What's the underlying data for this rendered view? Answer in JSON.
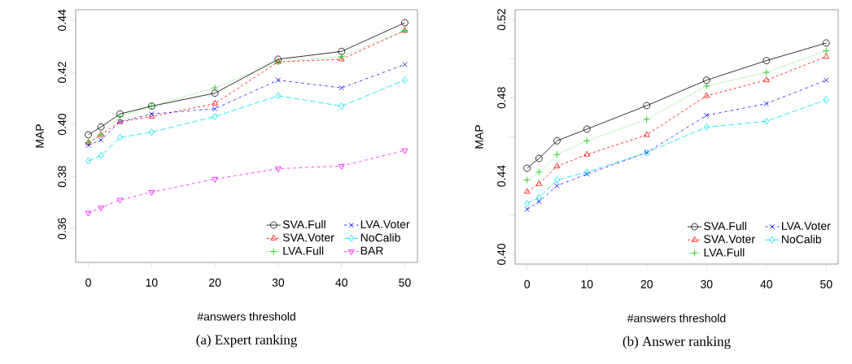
{
  "chart_data": [
    {
      "type": "line",
      "title": "(a) Expert ranking",
      "xlabel": "#answers threshold",
      "ylabel": "MAP",
      "x": [
        0,
        2,
        5,
        10,
        20,
        30,
        40,
        50
      ],
      "xlim": [
        -2,
        52
      ],
      "xticks": [
        0,
        10,
        20,
        30,
        40,
        50
      ],
      "ylim": [
        0.347,
        0.444
      ],
      "yticks": [
        0.36,
        0.38,
        {
          "value": 0.4,
          "label": "0.40"
        },
        0.42,
        0.44
      ],
      "legend": "bottom right",
      "grid": false,
      "series": [
        {
          "name": "SVA.Full",
          "color": "#000000",
          "marker": "circle",
          "line_style": "solid",
          "values": [
            0.396,
            0.399,
            0.404,
            0.407,
            0.412,
            0.425,
            0.428,
            0.439
          ]
        },
        {
          "name": "SVA.Voter",
          "color": "#ff0000",
          "marker": "triangle",
          "line_style": "dashed",
          "values": [
            0.393,
            0.396,
            0.401,
            0.403,
            0.408,
            0.424,
            0.425,
            0.436
          ]
        },
        {
          "name": "LVA.Full",
          "color": "#00cd00",
          "marker": "plus",
          "line_style": "dotted",
          "values": [
            0.393,
            0.396,
            0.403,
            0.407,
            0.414,
            0.424,
            0.426,
            0.436
          ]
        },
        {
          "name": "LVA.Voter",
          "color": "#0000ff",
          "marker": "x",
          "line_style": "dashdot",
          "values": [
            0.392,
            0.394,
            0.401,
            0.404,
            0.406,
            0.417,
            0.414,
            0.423
          ]
        },
        {
          "name": "NoCalib",
          "color": "#00e5ee",
          "marker": "diamond",
          "line_style": "longdash",
          "values": [
            0.386,
            0.388,
            0.395,
            0.397,
            0.403,
            0.411,
            0.407,
            0.417
          ]
        },
        {
          "name": "BAR",
          "color": "#ff00ff",
          "marker": "triangle-down",
          "line_style": "dashdot",
          "values": [
            0.366,
            0.368,
            0.371,
            0.374,
            0.379,
            0.383,
            0.384,
            0.39
          ]
        }
      ]
    },
    {
      "type": "line",
      "title": "(b) Answer ranking",
      "xlabel": "#answers threshold",
      "ylabel": "MAP",
      "x": [
        0,
        2,
        5,
        10,
        20,
        30,
        40,
        50
      ],
      "xlim": [
        -2,
        52
      ],
      "xticks": [
        0,
        10,
        20,
        30,
        40,
        50
      ],
      "ylim": [
        0.395,
        0.525
      ],
      "yticks": [
        {
          "value": 0.4,
          "label": "0.40"
        },
        {
          "value": 0.42,
          "label": null
        },
        0.44,
        {
          "value": 0.46,
          "label": null
        },
        0.48,
        {
          "value": 0.5,
          "label": null
        },
        0.52
      ],
      "legend": "bottom right",
      "grid": false,
      "series": [
        {
          "name": "SVA.Full",
          "color": "#000000",
          "marker": "circle",
          "line_style": "solid",
          "values": [
            0.444,
            0.449,
            0.458,
            0.464,
            0.476,
            0.489,
            0.499,
            0.508
          ]
        },
        {
          "name": "SVA.Voter",
          "color": "#ff0000",
          "marker": "triangle",
          "line_style": "dashed",
          "values": [
            0.432,
            0.436,
            0.445,
            0.451,
            0.461,
            0.481,
            0.489,
            0.501
          ]
        },
        {
          "name": "LVA.Full",
          "color": "#00cd00",
          "marker": "plus",
          "line_style": "dotted",
          "values": [
            0.438,
            0.442,
            0.451,
            0.458,
            0.469,
            0.486,
            0.493,
            0.504
          ]
        },
        {
          "name": "LVA.Voter",
          "color": "#0000ff",
          "marker": "x",
          "line_style": "dashdot",
          "values": [
            0.423,
            0.427,
            0.435,
            0.441,
            0.452,
            0.471,
            0.477,
            0.489
          ]
        },
        {
          "name": "NoCalib",
          "color": "#00e5ee",
          "marker": "diamond",
          "line_style": "longdash",
          "values": [
            0.426,
            0.429,
            0.438,
            0.442,
            0.452,
            0.465,
            0.468,
            0.479
          ]
        }
      ]
    }
  ]
}
